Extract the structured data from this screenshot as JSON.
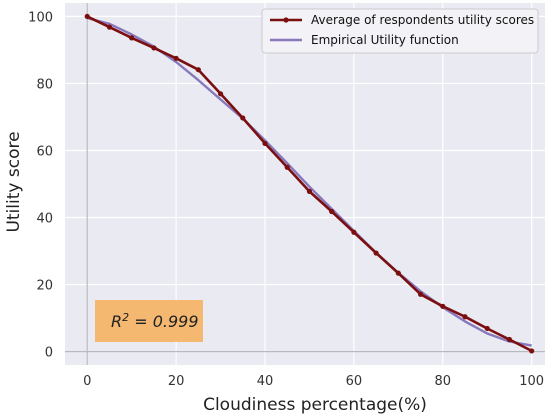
{
  "chart_data": {
    "type": "line",
    "xlabel": "Cloudiness percentage(%)",
    "ylabel": "Utility score",
    "xlim": [
      -5,
      103
    ],
    "ylim": [
      -4,
      104
    ],
    "xticks": [
      0,
      20,
      40,
      60,
      80,
      100
    ],
    "yticks": [
      0,
      20,
      40,
      60,
      80,
      100
    ],
    "grid": true,
    "legend_position": "top-right",
    "annotation": {
      "base": "R",
      "exponent": "2",
      "rest": " = 0.999",
      "background": "#f5b870"
    },
    "series": [
      {
        "name": "Average of respondents utility scores",
        "color": "#7b0f0f",
        "markers": true,
        "x": [
          0,
          5,
          10,
          15,
          20,
          25,
          30,
          35,
          40,
          45,
          50,
          55,
          60,
          65,
          70,
          75,
          80,
          85,
          90,
          95,
          100
        ],
        "y": [
          100,
          96.8,
          93.6,
          90.6,
          87.5,
          84.1,
          76.9,
          69.7,
          62.1,
          55.0,
          47.8,
          41.8,
          35.6,
          29.4,
          23.4,
          17.1,
          13.5,
          10.4,
          6.9,
          3.6,
          0.2
        ]
      },
      {
        "name": "Empirical Utility function",
        "color": "#8877bb",
        "markers": false,
        "x": [
          0,
          5,
          10,
          15,
          20,
          25,
          30,
          35,
          40,
          45,
          50,
          55,
          60,
          65,
          70,
          75,
          80,
          85,
          90,
          95,
          100
        ],
        "y": [
          99.5,
          97.8,
          94.6,
          91.0,
          86.4,
          81.0,
          75.2,
          69.5,
          63.0,
          56.2,
          49.2,
          42.6,
          36.0,
          29.5,
          23.5,
          18.0,
          13.2,
          9.0,
          5.4,
          3.0,
          1.8
        ]
      }
    ]
  }
}
